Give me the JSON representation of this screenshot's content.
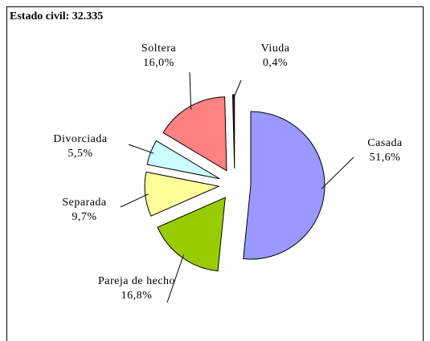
{
  "chart_data": {
    "type": "pie",
    "title": "Estado civil: 32.335",
    "categories": [
      "Casada",
      "Pareja de hecho",
      "Separada",
      "Divorciada",
      "Soltera",
      "Viuda"
    ],
    "values": [
      51.6,
      16.8,
      9.7,
      5.5,
      16.0,
      0.4
    ],
    "value_labels": [
      "51,6%",
      "16,8%",
      "9,7%",
      "5,5%",
      "16,0%",
      "0,4%"
    ],
    "colors": [
      "#9999ff",
      "#99cc00",
      "#ffff99",
      "#ccffff",
      "#ff8080",
      "#333333"
    ]
  }
}
